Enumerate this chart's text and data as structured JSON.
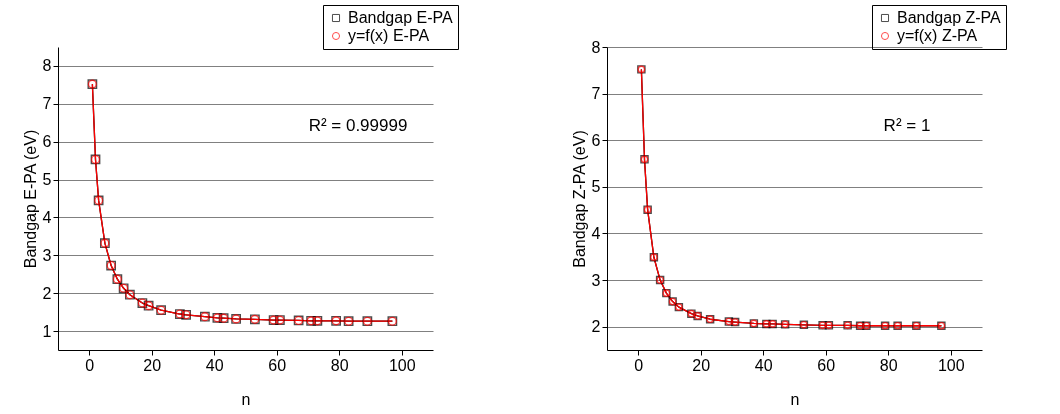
{
  "chart_data": [
    {
      "type": "line",
      "xlabel": "n",
      "ylabel": "Bandgap E-PA (eV)",
      "x": [
        1,
        2,
        3,
        5,
        7,
        9,
        11,
        13,
        17,
        19,
        23,
        29,
        31,
        37,
        41,
        43,
        47,
        53,
        59,
        61,
        67,
        71,
        73,
        79,
        83,
        89,
        97
      ],
      "xlim": [
        -10,
        110
      ],
      "xticks": [
        0,
        20,
        40,
        60,
        80,
        100
      ],
      "ylim": [
        0.5,
        8.5
      ],
      "yticks": [
        1,
        2,
        3,
        4,
        5,
        6,
        7,
        8
      ],
      "grid": "y",
      "legend": "top right",
      "line_style": "solid",
      "annotations": [
        "R² = 0.99999"
      ],
      "series": [
        {
          "name": "Bandgap E-PA",
          "color": "#000000",
          "marker": "square",
          "values": [
            7.52,
            5.53,
            4.45,
            3.32,
            2.73,
            2.37,
            2.13,
            1.96,
            1.74,
            1.67,
            1.55,
            1.45,
            1.43,
            1.38,
            1.35,
            1.34,
            1.32,
            1.31,
            1.29,
            1.29,
            1.28,
            1.27,
            1.27,
            1.27,
            1.26,
            1.26,
            1.26
          ]
        },
        {
          "name": "y=f(x) E-PA",
          "color": "#ff0000",
          "marker": "circle",
          "values": [
            7.52,
            5.53,
            4.45,
            3.32,
            2.73,
            2.37,
            2.13,
            1.96,
            1.74,
            1.67,
            1.55,
            1.45,
            1.43,
            1.38,
            1.35,
            1.34,
            1.32,
            1.31,
            1.29,
            1.29,
            1.28,
            1.27,
            1.27,
            1.27,
            1.26,
            1.26,
            1.26
          ]
        }
      ]
    },
    {
      "type": "line",
      "xlabel": "n",
      "ylabel": "Bandgap Z-PA (eV)",
      "x": [
        1,
        2,
        3,
        5,
        7,
        9,
        11,
        13,
        17,
        19,
        23,
        29,
        31,
        37,
        41,
        43,
        47,
        53,
        59,
        61,
        67,
        71,
        73,
        79,
        83,
        89,
        97
      ],
      "xlim": [
        -10,
        110
      ],
      "xticks": [
        0,
        20,
        40,
        60,
        80,
        100
      ],
      "ylim": [
        1.5,
        8
      ],
      "yticks": [
        2,
        3,
        4,
        5,
        6,
        7,
        8
      ],
      "grid": "y",
      "legend": "top right",
      "line_style": "solid",
      "annotations": [
        "R² = 1"
      ],
      "series": [
        {
          "name": "Bandgap Z-PA",
          "color": "#000000",
          "marker": "square",
          "values": [
            7.52,
            5.59,
            4.51,
            3.49,
            3.0,
            2.72,
            2.54,
            2.42,
            2.28,
            2.23,
            2.16,
            2.11,
            2.1,
            2.07,
            2.06,
            2.06,
            2.05,
            2.04,
            2.03,
            2.03,
            2.03,
            2.02,
            2.02,
            2.02,
            2.02,
            2.02,
            2.02
          ]
        },
        {
          "name": "y=f(x) Z-PA",
          "color": "#ff0000",
          "marker": "circle",
          "values": [
            7.52,
            5.59,
            4.51,
            3.49,
            3.0,
            2.72,
            2.54,
            2.42,
            2.28,
            2.23,
            2.16,
            2.11,
            2.1,
            2.07,
            2.06,
            2.06,
            2.05,
            2.04,
            2.03,
            2.03,
            2.03,
            2.02,
            2.02,
            2.02,
            2.02,
            2.02,
            2.02
          ]
        }
      ]
    }
  ]
}
